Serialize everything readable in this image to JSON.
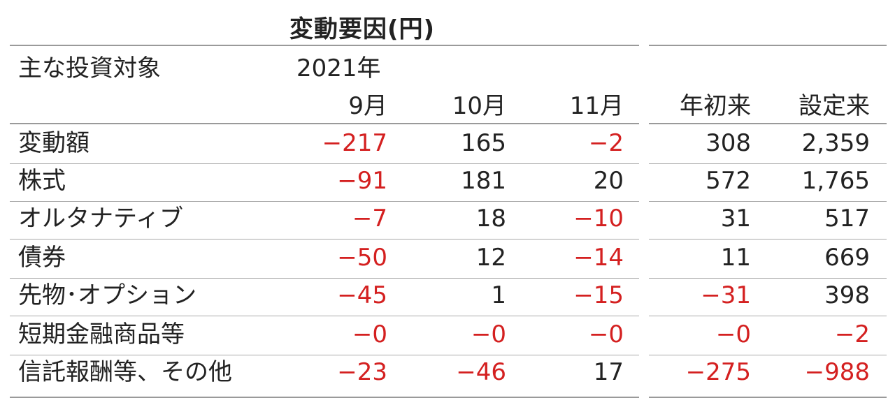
{
  "title": "変動要因(円)",
  "header": {
    "label_col": "主な投資対象",
    "year": "2021年",
    "months": [
      "9月",
      "10月",
      "11月"
    ],
    "ytd": "年初来",
    "since_inception": "設定来"
  },
  "rows": [
    {
      "label": "変動額",
      "values": [
        "−217",
        "165",
        "−2",
        "308",
        "2,359"
      ]
    },
    {
      "label": "株式",
      "values": [
        "−91",
        "181",
        "20",
        "572",
        "1,765"
      ]
    },
    {
      "label": "オルタナティブ",
      "values": [
        "−7",
        "18",
        "−10",
        "31",
        "517"
      ]
    },
    {
      "label": "債券",
      "values": [
        "−50",
        "12",
        "−14",
        "11",
        "669"
      ]
    },
    {
      "label": "先物･オプション",
      "values": [
        "−45",
        "1",
        "−15",
        "−31",
        "398"
      ]
    },
    {
      "label": "短期金融商品等",
      "values": [
        "−0",
        "−0",
        "−0",
        "−0",
        "−2"
      ]
    },
    {
      "label": "信託報酬等、その他",
      "values": [
        "−23",
        "−46",
        "17",
        "−275",
        "−988"
      ]
    }
  ],
  "colors": {
    "negative": "#d42020",
    "text": "#222222",
    "rule": "#9a9a9a"
  }
}
